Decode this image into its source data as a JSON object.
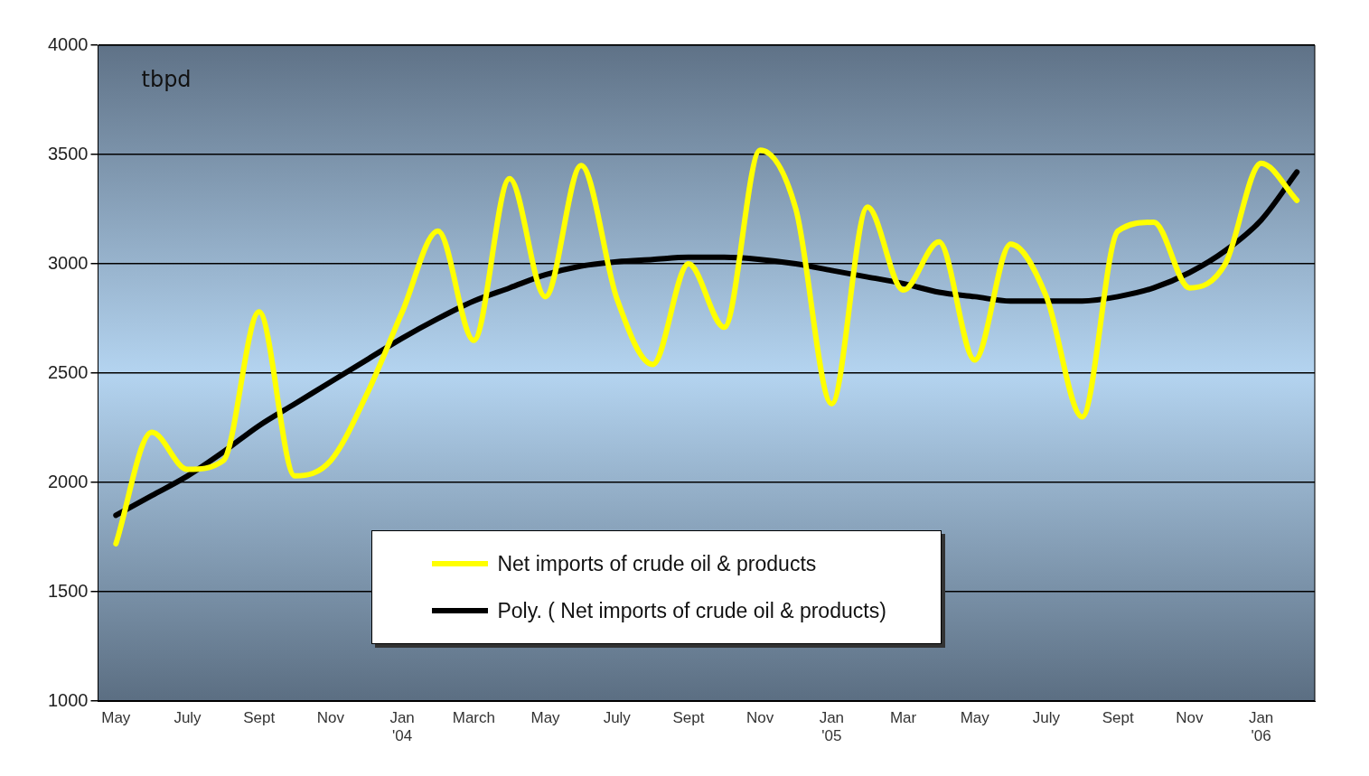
{
  "chart_data": {
    "type": "line",
    "annotations": [
      "tbpd"
    ],
    "categories": [
      "May",
      null,
      "July",
      null,
      "Sept",
      null,
      "Nov",
      null,
      "Jan\n'04",
      null,
      "March",
      null,
      "May",
      null,
      "July",
      null,
      "Sept",
      null,
      "Nov",
      null,
      "Jan\n'05",
      null,
      "Mar",
      null,
      "May",
      null,
      "July",
      null,
      "Sept",
      null,
      "Nov",
      null,
      "Jan\n'06",
      null
    ],
    "series": [
      {
        "name": "Net imports of crude oil & products",
        "color": "#ffff00",
        "values": [
          1720,
          2230,
          2060,
          2100,
          2780,
          2030,
          2100,
          2400,
          2780,
          3150,
          2650,
          3390,
          2850,
          3450,
          2840,
          2540,
          3000,
          2710,
          3520,
          3250,
          2360,
          3260,
          2880,
          3100,
          2560,
          3090,
          2850,
          2300,
          3150,
          3190,
          2890,
          3000,
          3460,
          3290
        ]
      },
      {
        "name": "Poly. ( Net imports of crude oil & products)",
        "color": "#000000",
        "values": [
          1850,
          1940,
          2030,
          2140,
          2260,
          2360,
          2460,
          2560,
          2660,
          2750,
          2830,
          2890,
          2950,
          2990,
          3010,
          3020,
          3030,
          3030,
          3020,
          3000,
          2970,
          2940,
          2910,
          2870,
          2850,
          2830,
          2830,
          2830,
          2850,
          2890,
          2960,
          3060,
          3200,
          3420
        ]
      }
    ],
    "ylim": [
      1000,
      4000
    ],
    "yticks": [
      1000,
      1500,
      2000,
      2500,
      3000,
      3500,
      4000
    ],
    "grid": "y",
    "legend": "bottom",
    "marker": "none",
    "line_style": "solid"
  }
}
